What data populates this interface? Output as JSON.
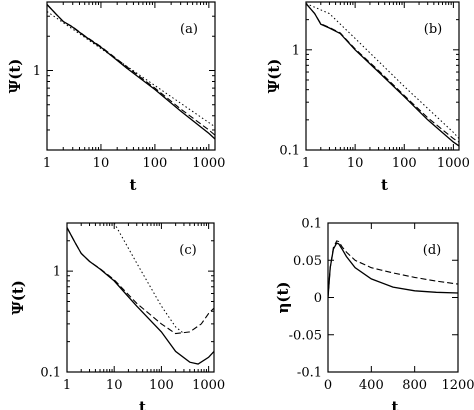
{
  "chart_data": [
    {
      "type": "line",
      "panel": "(a)",
      "xlabel": "t",
      "ylabel": "Ψ(t)",
      "xscale": "log",
      "yscale": "log",
      "xlim": [
        1,
        1300
      ],
      "ylim": [
        0.2,
        4.0
      ],
      "xticks": [
        {
          "v": 1,
          "label": "1"
        },
        {
          "v": 10,
          "label": "10"
        },
        {
          "v": 100,
          "label": "100"
        },
        {
          "v": 1000,
          "label": "1000"
        }
      ],
      "yticks": [
        {
          "v": 1,
          "label": "1"
        }
      ],
      "series": [
        {
          "style": "solid",
          "x": [
            1,
            1.5,
            2,
            3,
            5,
            10,
            30,
            100,
            300,
            1000,
            1300
          ],
          "y": [
            3.8,
            3.1,
            2.7,
            2.4,
            2.0,
            1.6,
            1.05,
            0.68,
            0.44,
            0.28,
            0.25
          ]
        },
        {
          "style": "dashed",
          "x": [
            1,
            1.5,
            2,
            3,
            5,
            10,
            30,
            100,
            300,
            1000,
            1300
          ],
          "y": [
            3.8,
            3.1,
            2.7,
            2.42,
            2.02,
            1.62,
            1.08,
            0.7,
            0.46,
            0.3,
            0.27
          ]
        },
        {
          "style": "dotted",
          "x": [
            1,
            1300
          ],
          "y": [
            3.3,
            0.32
          ]
        }
      ]
    },
    {
      "type": "line",
      "panel": "(b)",
      "xlabel": "t",
      "ylabel": "Ψ(t)",
      "xscale": "log",
      "yscale": "log",
      "xlim": [
        1,
        1300
      ],
      "ylim": [
        0.1,
        3.0
      ],
      "xticks": [
        {
          "v": 1,
          "label": "1"
        },
        {
          "v": 10,
          "label": "10"
        },
        {
          "v": 100,
          "label": "100"
        },
        {
          "v": 1000,
          "label": "1000"
        }
      ],
      "yticks": [
        {
          "v": 1,
          "label": "1"
        },
        {
          "v": 0.1,
          "label": "0.1"
        }
      ],
      "series": [
        {
          "style": "solid",
          "x": [
            1,
            1.5,
            2,
            3,
            5,
            10,
            30,
            100,
            300,
            1000,
            1300
          ],
          "y": [
            2.9,
            2.3,
            1.8,
            1.65,
            1.45,
            1.0,
            0.6,
            0.34,
            0.2,
            0.12,
            0.11
          ]
        },
        {
          "style": "dashed",
          "x": [
            1,
            1.5,
            2,
            3,
            5,
            10,
            30,
            100,
            300,
            1000,
            1300
          ],
          "y": [
            2.9,
            2.3,
            1.82,
            1.67,
            1.47,
            1.02,
            0.62,
            0.35,
            0.21,
            0.13,
            0.12
          ]
        },
        {
          "style": "dotted",
          "x": [
            1,
            3,
            10,
            100,
            1000,
            1300
          ],
          "y": [
            2.9,
            2.3,
            1.3,
            0.43,
            0.15,
            0.13
          ]
        }
      ]
    },
    {
      "type": "line",
      "panel": "(c)",
      "xlabel": "t",
      "ylabel": "Ψ(t)",
      "xscale": "log",
      "yscale": "log",
      "xlim": [
        1,
        1300
      ],
      "ylim": [
        0.1,
        3.0
      ],
      "xticks": [
        {
          "v": 1,
          "label": "1"
        },
        {
          "v": 10,
          "label": "10"
        },
        {
          "v": 100,
          "label": "100"
        },
        {
          "v": 1000,
          "label": "1000"
        }
      ],
      "yticks": [
        {
          "v": 1,
          "label": "1"
        },
        {
          "v": 0.1,
          "label": "0.1"
        }
      ],
      "series": [
        {
          "style": "solid",
          "x": [
            1,
            1.5,
            2,
            3,
            5,
            10,
            30,
            100,
            200,
            400,
            600,
            1000,
            1300
          ],
          "y": [
            2.7,
            1.9,
            1.5,
            1.25,
            1.05,
            0.8,
            0.45,
            0.25,
            0.16,
            0.125,
            0.12,
            0.14,
            0.16
          ]
        },
        {
          "style": "dashed",
          "x": [
            1,
            1.5,
            2,
            3,
            5,
            10,
            30,
            100,
            200,
            400,
            700,
            1000,
            1300
          ],
          "y": [
            2.7,
            1.9,
            1.5,
            1.25,
            1.06,
            0.82,
            0.48,
            0.3,
            0.24,
            0.25,
            0.3,
            0.38,
            0.43
          ]
        },
        {
          "style": "dotted",
          "x": [
            10,
            30,
            100,
            200,
            300
          ],
          "y": [
            3.0,
            1.2,
            0.45,
            0.28,
            0.24
          ]
        }
      ]
    },
    {
      "type": "line",
      "panel": "(d)",
      "xlabel": "t",
      "ylabel": "η(t)",
      "xscale": "linear",
      "yscale": "linear",
      "xlim": [
        0,
        1200
      ],
      "ylim": [
        -0.1,
        0.1
      ],
      "xticks": [
        {
          "v": 0,
          "label": "0"
        },
        {
          "v": 400,
          "label": "400"
        },
        {
          "v": 800,
          "label": "800"
        },
        {
          "v": 1200,
          "label": "1200"
        }
      ],
      "yticks": [
        {
          "v": 0.1,
          "label": "0.1"
        },
        {
          "v": 0.05,
          "label": "0.05"
        },
        {
          "v": 0,
          "label": "0"
        },
        {
          "v": -0.05,
          "label": "-0.05"
        },
        {
          "v": -0.1,
          "label": "-0.1"
        }
      ],
      "series": [
        {
          "style": "solid",
          "x": [
            0,
            20,
            50,
            80,
            100,
            130,
            170,
            250,
            400,
            600,
            800,
            1000,
            1200
          ],
          "y": [
            0,
            0.04,
            0.065,
            0.073,
            0.072,
            0.065,
            0.055,
            0.04,
            0.025,
            0.014,
            0.009,
            0.007,
            0.006
          ]
        },
        {
          "style": "dashed",
          "x": [
            0,
            20,
            50,
            80,
            100,
            130,
            170,
            250,
            400,
            600,
            800,
            1000,
            1200
          ],
          "y": [
            0,
            0.04,
            0.067,
            0.076,
            0.075,
            0.068,
            0.061,
            0.05,
            0.04,
            0.033,
            0.027,
            0.022,
            0.018
          ]
        }
      ]
    }
  ]
}
